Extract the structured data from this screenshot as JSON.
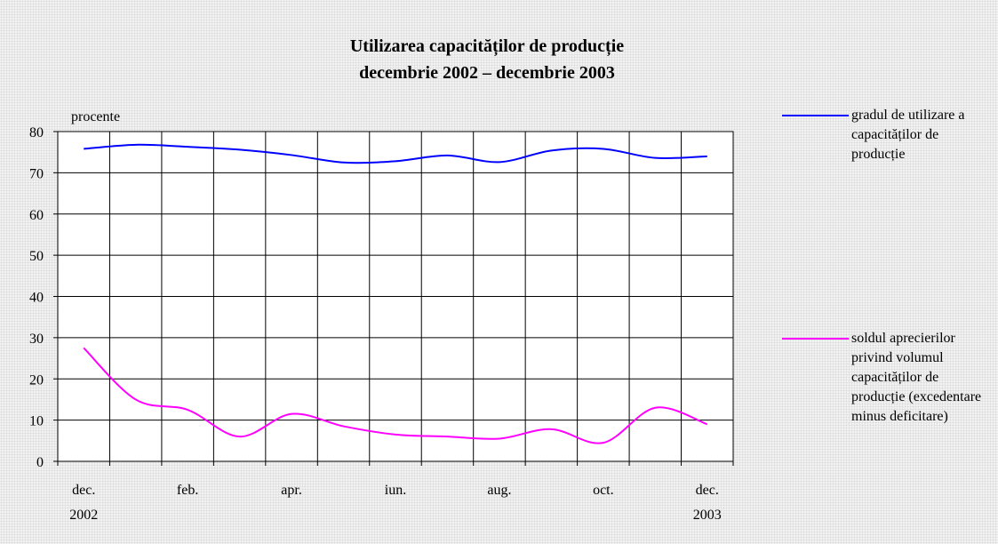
{
  "chart_data": {
    "type": "line",
    "title": "Utilizarea capacităților de producție",
    "subtitle": "decembrie 2002 – decembrie 2003",
    "y_label": "procente",
    "categories": [
      "dec.",
      null,
      "feb.",
      null,
      "apr.",
      null,
      "iun.",
      null,
      "aug.",
      null,
      "oct.",
      null,
      "dec."
    ],
    "years": [
      "2002",
      null,
      null,
      null,
      null,
      null,
      null,
      null,
      null,
      null,
      null,
      null,
      "2003"
    ],
    "series": [
      {
        "name": "gradul de utilizare a capacităților de producție",
        "color": "#0000ff",
        "values": [
          75.8,
          76.8,
          76.3,
          75.6,
          74.3,
          72.5,
          72.8,
          74.2,
          72.6,
          75.4,
          75.8,
          73.6,
          74.0
        ]
      },
      {
        "name": "soldul aprecierilor privind volumul capacităților de producție (excedentare minus deficitare)",
        "color": "#ff00ff",
        "values": [
          27.5,
          15.0,
          12.5,
          6.0,
          11.5,
          8.5,
          6.5,
          6.0,
          5.5,
          7.8,
          4.5,
          13.0,
          9.0
        ]
      }
    ],
    "ylim": [
      0,
      80
    ],
    "yticks": [
      0,
      10,
      20,
      30,
      40,
      50,
      60,
      70,
      80
    ],
    "grid": true
  }
}
